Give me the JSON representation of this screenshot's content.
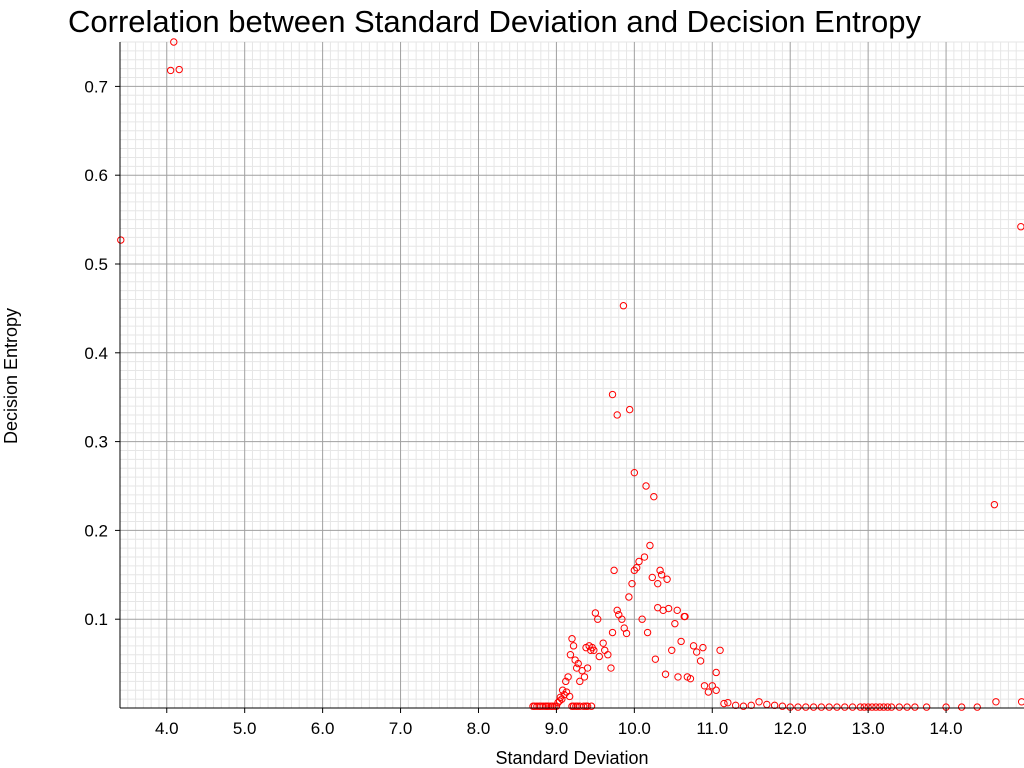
{
  "chart_data": {
    "type": "scatter",
    "title": "Correlation between Standard Deviation and Decision Entropy",
    "xlabel": "Standard Deviation",
    "ylabel": "Decision Entropy",
    "xlim": [
      3.4,
      15.0
    ],
    "ylim": [
      0.0,
      0.75
    ],
    "x_ticks": [
      "4.0",
      "5.0",
      "6.0",
      "7.0",
      "8.0",
      "9.0",
      "10.0",
      "11.0",
      "12.0",
      "13.0",
      "14.0"
    ],
    "x_tick_values": [
      4.0,
      5.0,
      6.0,
      7.0,
      8.0,
      9.0,
      10.0,
      11.0,
      12.0,
      13.0,
      14.0
    ],
    "y_ticks": [
      "0.1",
      "0.2",
      "0.3",
      "0.4",
      "0.5",
      "0.6",
      "0.7"
    ],
    "y_tick_values": [
      0.1,
      0.2,
      0.3,
      0.4,
      0.5,
      0.6,
      0.7
    ],
    "grid": true,
    "legend": "none",
    "marker_color": "#ff0000",
    "x": [
      3.41,
      4.05,
      4.09,
      4.16,
      8.7,
      8.72,
      8.75,
      8.78,
      8.8,
      8.83,
      8.86,
      8.88,
      8.9,
      8.93,
      8.95,
      8.98,
      9.0,
      9.02,
      9.04,
      9.05,
      9.07,
      9.08,
      9.1,
      9.12,
      9.13,
      9.15,
      9.17,
      9.18,
      9.2,
      9.22,
      9.24,
      9.26,
      9.28,
      9.3,
      9.33,
      9.36,
      9.38,
      9.4,
      9.42,
      9.44,
      9.46,
      9.2,
      9.22,
      9.25,
      9.27,
      9.3,
      9.35,
      9.38,
      9.4,
      9.45,
      9.48,
      9.5,
      9.53,
      9.55,
      9.6,
      9.62,
      9.66,
      9.7,
      9.72,
      9.74,
      9.78,
      9.8,
      9.84,
      9.87,
      9.9,
      9.93,
      9.97,
      10.0,
      10.03,
      10.06,
      10.1,
      10.13,
      10.17,
      10.2,
      10.23,
      10.27,
      10.3,
      10.33,
      10.37,
      10.4,
      10.44,
      10.48,
      10.52,
      10.56,
      10.6,
      10.64,
      10.68,
      10.72,
      10.76,
      10.8,
      10.85,
      10.9,
      10.95,
      11.0,
      11.05,
      11.1,
      11.15,
      9.72,
      9.78,
      9.86,
      9.94,
      10.0,
      10.15,
      10.25,
      10.3,
      10.35,
      10.42,
      10.55,
      10.65,
      10.88,
      11.05,
      11.2,
      11.3,
      11.4,
      11.5,
      11.6,
      11.7,
      11.8,
      11.9,
      12.0,
      12.1,
      12.2,
      12.3,
      12.4,
      12.5,
      12.6,
      12.7,
      12.8,
      12.9,
      12.95,
      13.0,
      13.05,
      13.1,
      13.15,
      13.2,
      13.25,
      13.3,
      13.4,
      13.5,
      13.6,
      13.75,
      14.0,
      14.2,
      14.4,
      14.62,
      14.64,
      14.96,
      14.97
    ],
    "y": [
      0.527,
      0.718,
      0.75,
      0.719,
      0.002,
      0.002,
      0.002,
      0.002,
      0.002,
      0.002,
      0.002,
      0.002,
      0.002,
      0.002,
      0.002,
      0.002,
      0.002,
      0.006,
      0.008,
      0.012,
      0.01,
      0.02,
      0.015,
      0.03,
      0.018,
      0.035,
      0.013,
      0.06,
      0.078,
      0.07,
      0.054,
      0.045,
      0.05,
      0.03,
      0.042,
      0.035,
      0.068,
      0.045,
      0.07,
      0.065,
      0.068,
      0.002,
      0.002,
      0.002,
      0.002,
      0.002,
      0.002,
      0.002,
      0.002,
      0.002,
      0.065,
      0.107,
      0.1,
      0.058,
      0.073,
      0.065,
      0.06,
      0.045,
      0.085,
      0.155,
      0.11,
      0.105,
      0.1,
      0.09,
      0.084,
      0.125,
      0.14,
      0.155,
      0.158,
      0.165,
      0.1,
      0.17,
      0.085,
      0.183,
      0.147,
      0.055,
      0.113,
      0.155,
      0.11,
      0.038,
      0.112,
      0.065,
      0.095,
      0.035,
      0.075,
      0.103,
      0.035,
      0.033,
      0.07,
      0.063,
      0.053,
      0.025,
      0.018,
      0.025,
      0.04,
      0.065,
      0.005,
      0.353,
      0.33,
      0.453,
      0.336,
      0.265,
      0.25,
      0.238,
      0.14,
      0.15,
      0.145,
      0.11,
      0.103,
      0.068,
      0.02,
      0.006,
      0.003,
      0.002,
      0.003,
      0.007,
      0.004,
      0.003,
      0.002,
      0.001,
      0.001,
      0.001,
      0.001,
      0.001,
      0.001,
      0.001,
      0.001,
      0.001,
      0.001,
      0.001,
      0.001,
      0.001,
      0.001,
      0.001,
      0.001,
      0.001,
      0.001,
      0.001,
      0.001,
      0.001,
      0.001,
      0.001,
      0.001,
      0.001,
      0.229,
      0.007,
      0.542,
      0.007
    ]
  }
}
